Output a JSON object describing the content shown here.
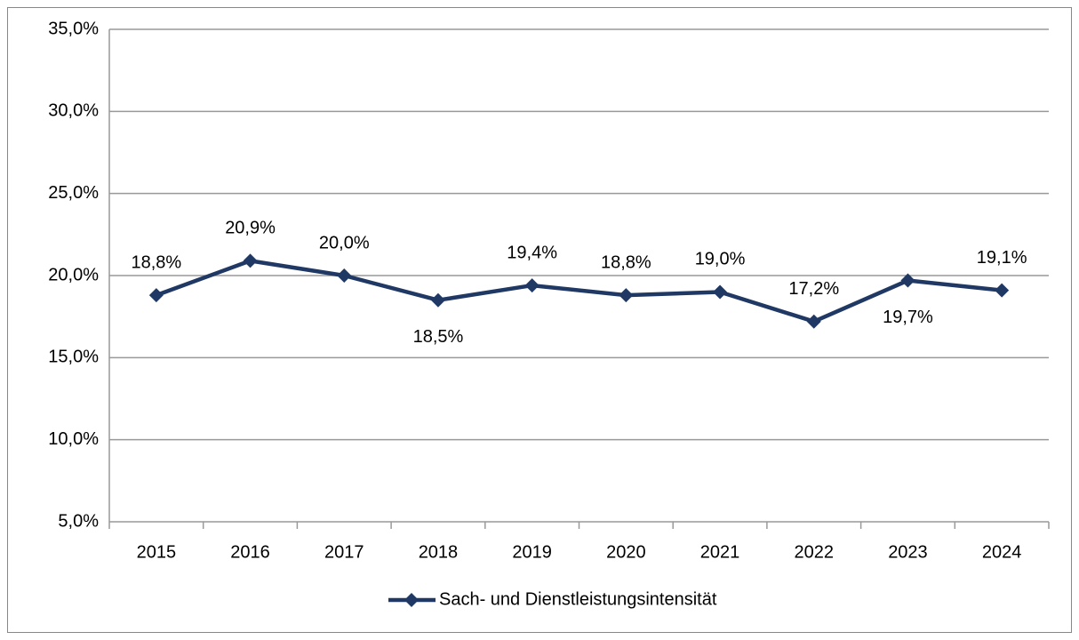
{
  "chart_data": {
    "type": "line",
    "categories": [
      "2015",
      "2016",
      "2017",
      "2018",
      "2019",
      "2020",
      "2021",
      "2022",
      "2023",
      "2024"
    ],
    "series": [
      {
        "name": "Sach- und Dienstleistungsintensität",
        "color": "#1f3864",
        "values": [
          18.8,
          20.9,
          20.0,
          18.5,
          19.4,
          18.8,
          19.0,
          17.2,
          19.7,
          19.1
        ],
        "value_labels": [
          "18,8%",
          "20,9%",
          "20,0%",
          "18,5%",
          "19,4%",
          "18,8%",
          "19,0%",
          "17,2%",
          "19,7%",
          "19,1%"
        ]
      }
    ],
    "ylim": [
      5,
      35
    ],
    "yticks": [
      {
        "value": 5,
        "label": "5,0%"
      },
      {
        "value": 10,
        "label": "10,0%"
      },
      {
        "value": 15,
        "label": "15,0%"
      },
      {
        "value": 20,
        "label": "20,0%"
      },
      {
        "value": 25,
        "label": "25,0%"
      },
      {
        "value": 30,
        "label": "30,0%"
      },
      {
        "value": 35,
        "label": "35,0%"
      }
    ],
    "grid": true,
    "legend": "bottom"
  }
}
